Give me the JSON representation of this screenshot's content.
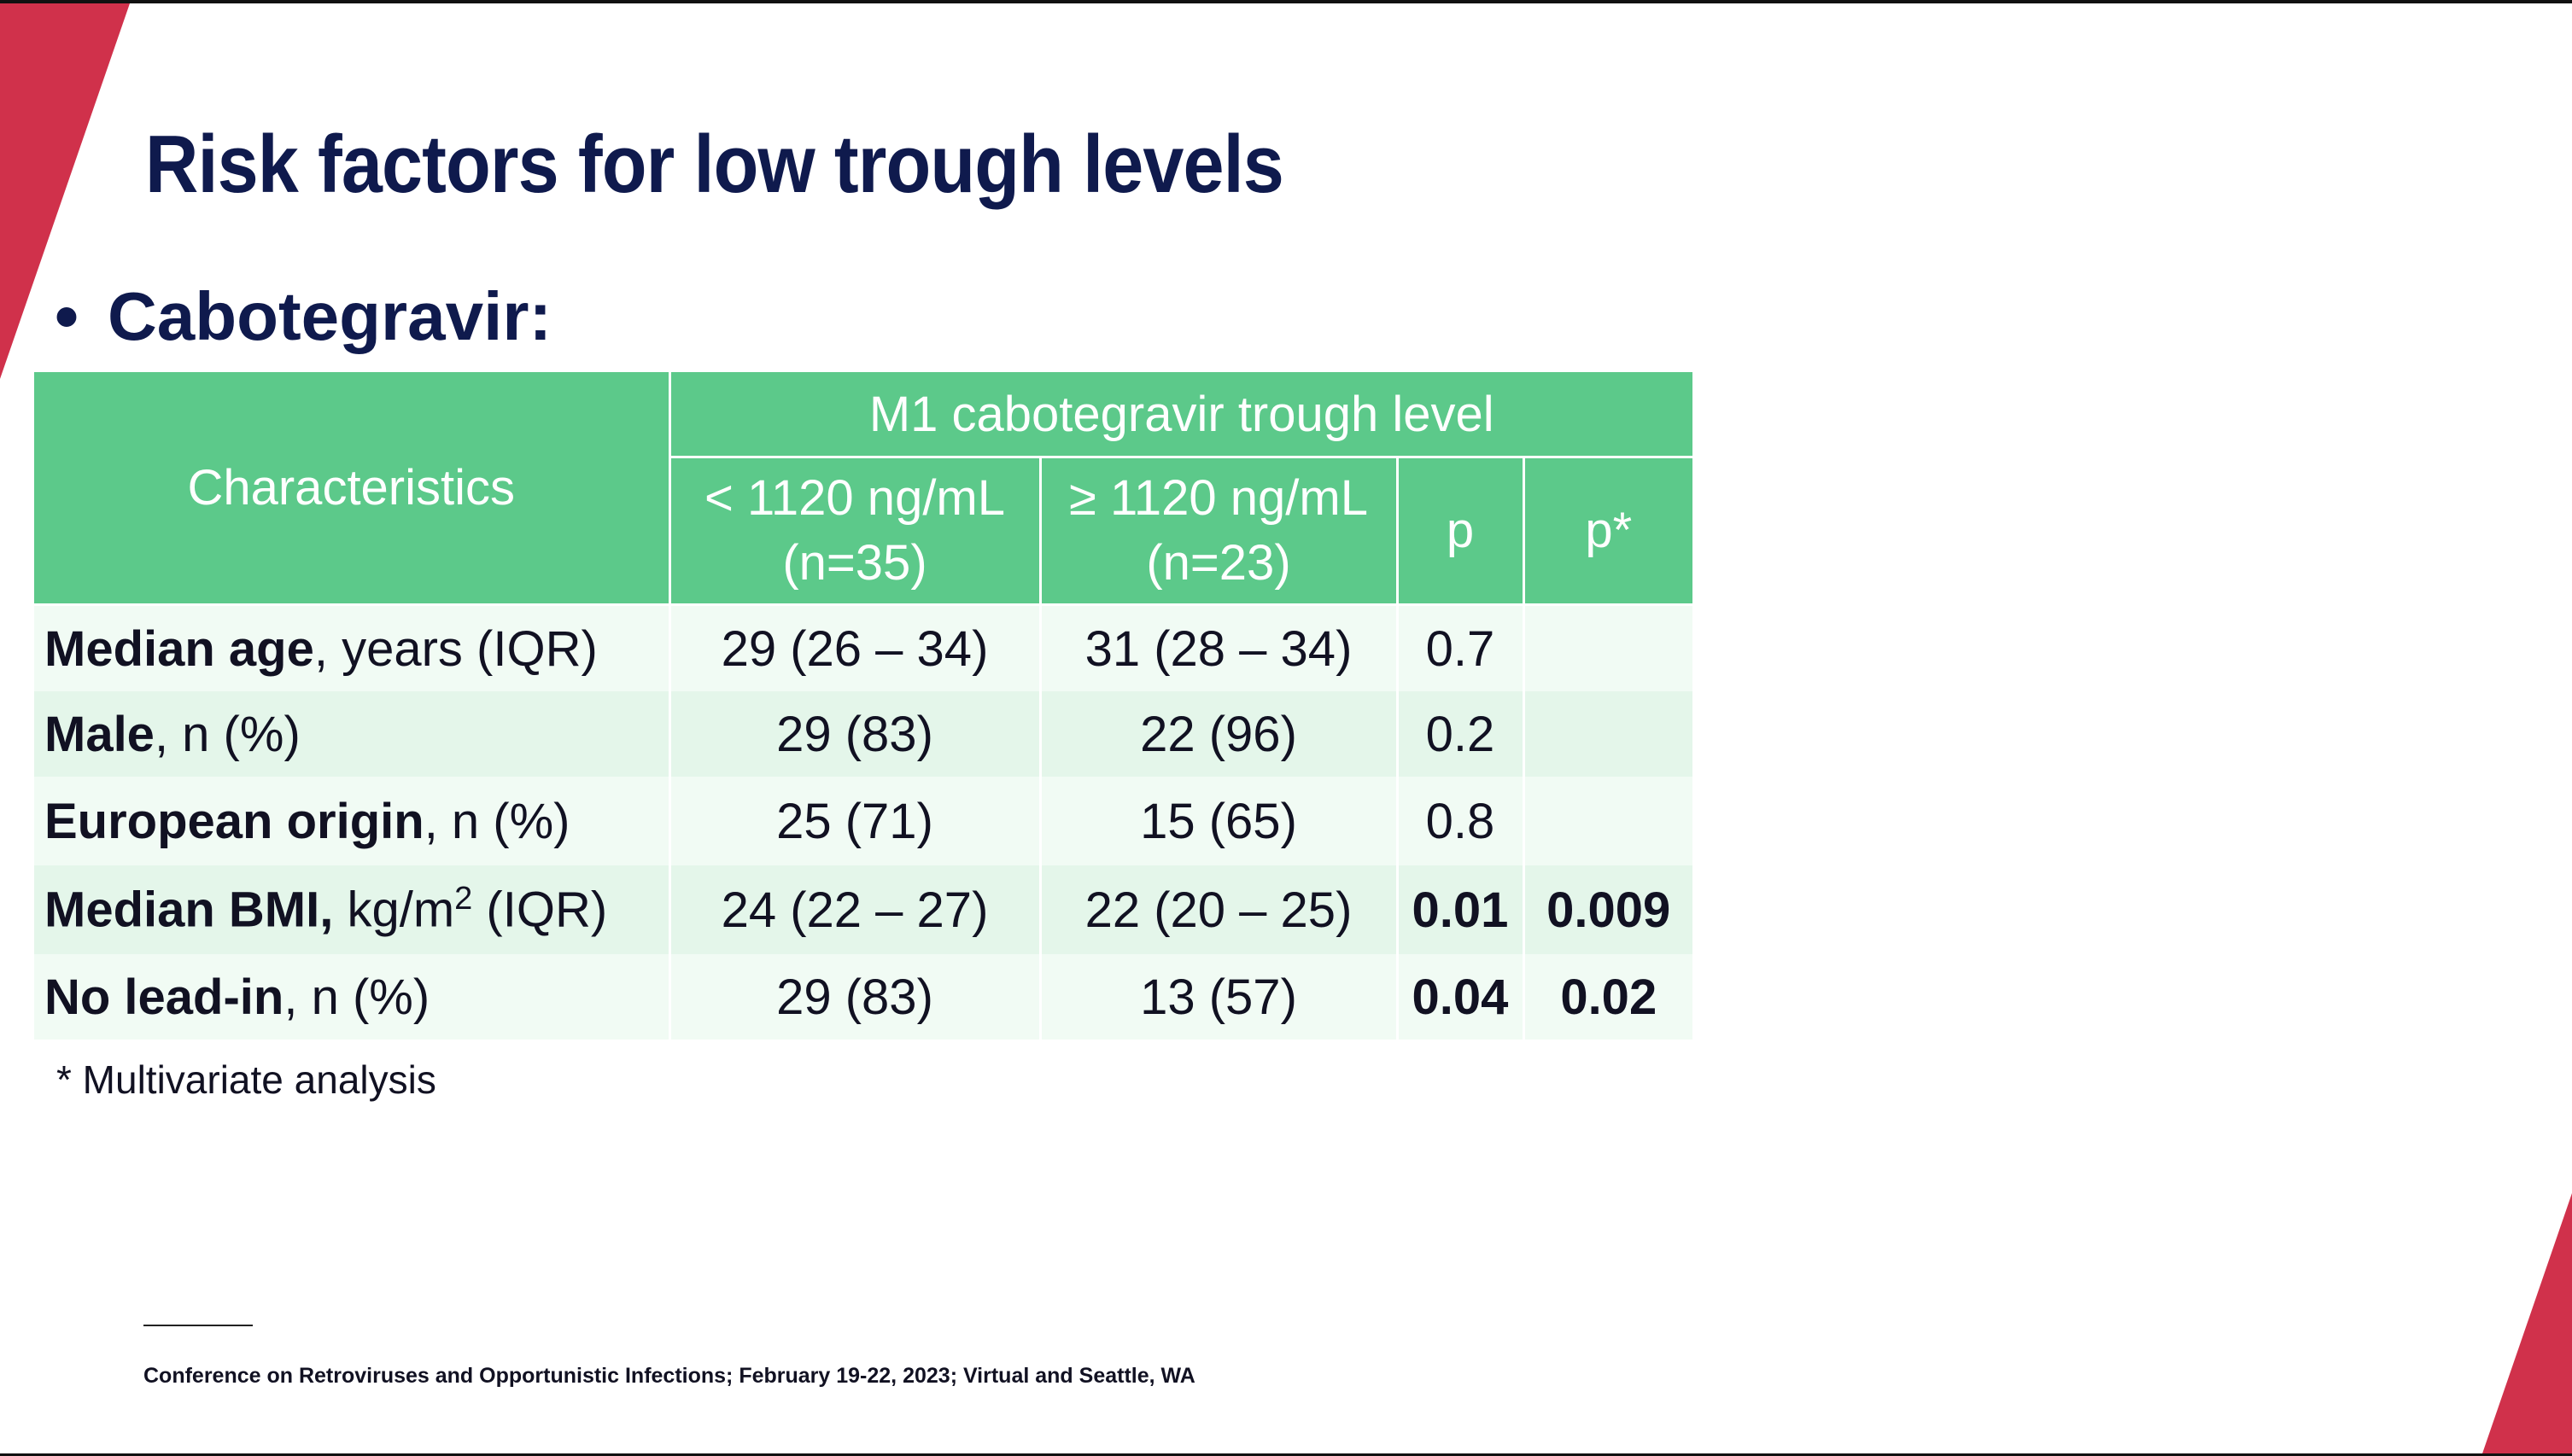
{
  "title": "Risk factors for low trough levels",
  "bullet": "Cabotegravir:",
  "table": {
    "header_characteristics": "Characteristics",
    "header_group": "M1 cabotegravir trough level",
    "col_low": [
      "< 1120 ng/mL",
      "(n=35)"
    ],
    "col_high": [
      "≥ 1120 ng/mL",
      "(n=23)"
    ],
    "col_p": "p",
    "col_p_star": "p*",
    "rows": [
      {
        "label_bold": "Median age",
        "label_rest": ", years (IQR)",
        "low": "29 (26 – 34)",
        "high": "31 (28 – 34)",
        "p": "0.7",
        "p_star": ""
      },
      {
        "label_bold": "Male",
        "label_rest": ", n (%)",
        "low": "29 (83)",
        "high": "22 (96)",
        "p": "0.2",
        "p_star": ""
      },
      {
        "label_bold": "European origin",
        "label_rest": ", n (%)",
        "low": "25 (71)",
        "high": "15 (65)",
        "p": "0.8",
        "p_star": ""
      },
      {
        "label_bold": "Median BMI,",
        "label_rest_pre": " kg/m",
        "label_sup": "2",
        "label_rest_post": " (IQR)",
        "low": "24 (22 – 27)",
        "high": "22 (20 – 25)",
        "p": "0.01",
        "p_star": "0.009"
      },
      {
        "label_bold": "No lead-in",
        "label_rest": ", n (%)",
        "low": "29 (83)",
        "high": "13 (57)",
        "p": "0.04",
        "p_star": "0.02"
      }
    ]
  },
  "footnote": "* Multivariate analysis",
  "citation": "Conference on Retroviruses and Opportunistic Infections; February 19-22, 2023; Virtual and Seattle, WA",
  "colors": {
    "title": "#0f1a4d",
    "header_green": "#5cc98a",
    "accent_red": "#d0314b",
    "row_light": "#f1fbf4",
    "row_dark": "#e4f6ea"
  }
}
